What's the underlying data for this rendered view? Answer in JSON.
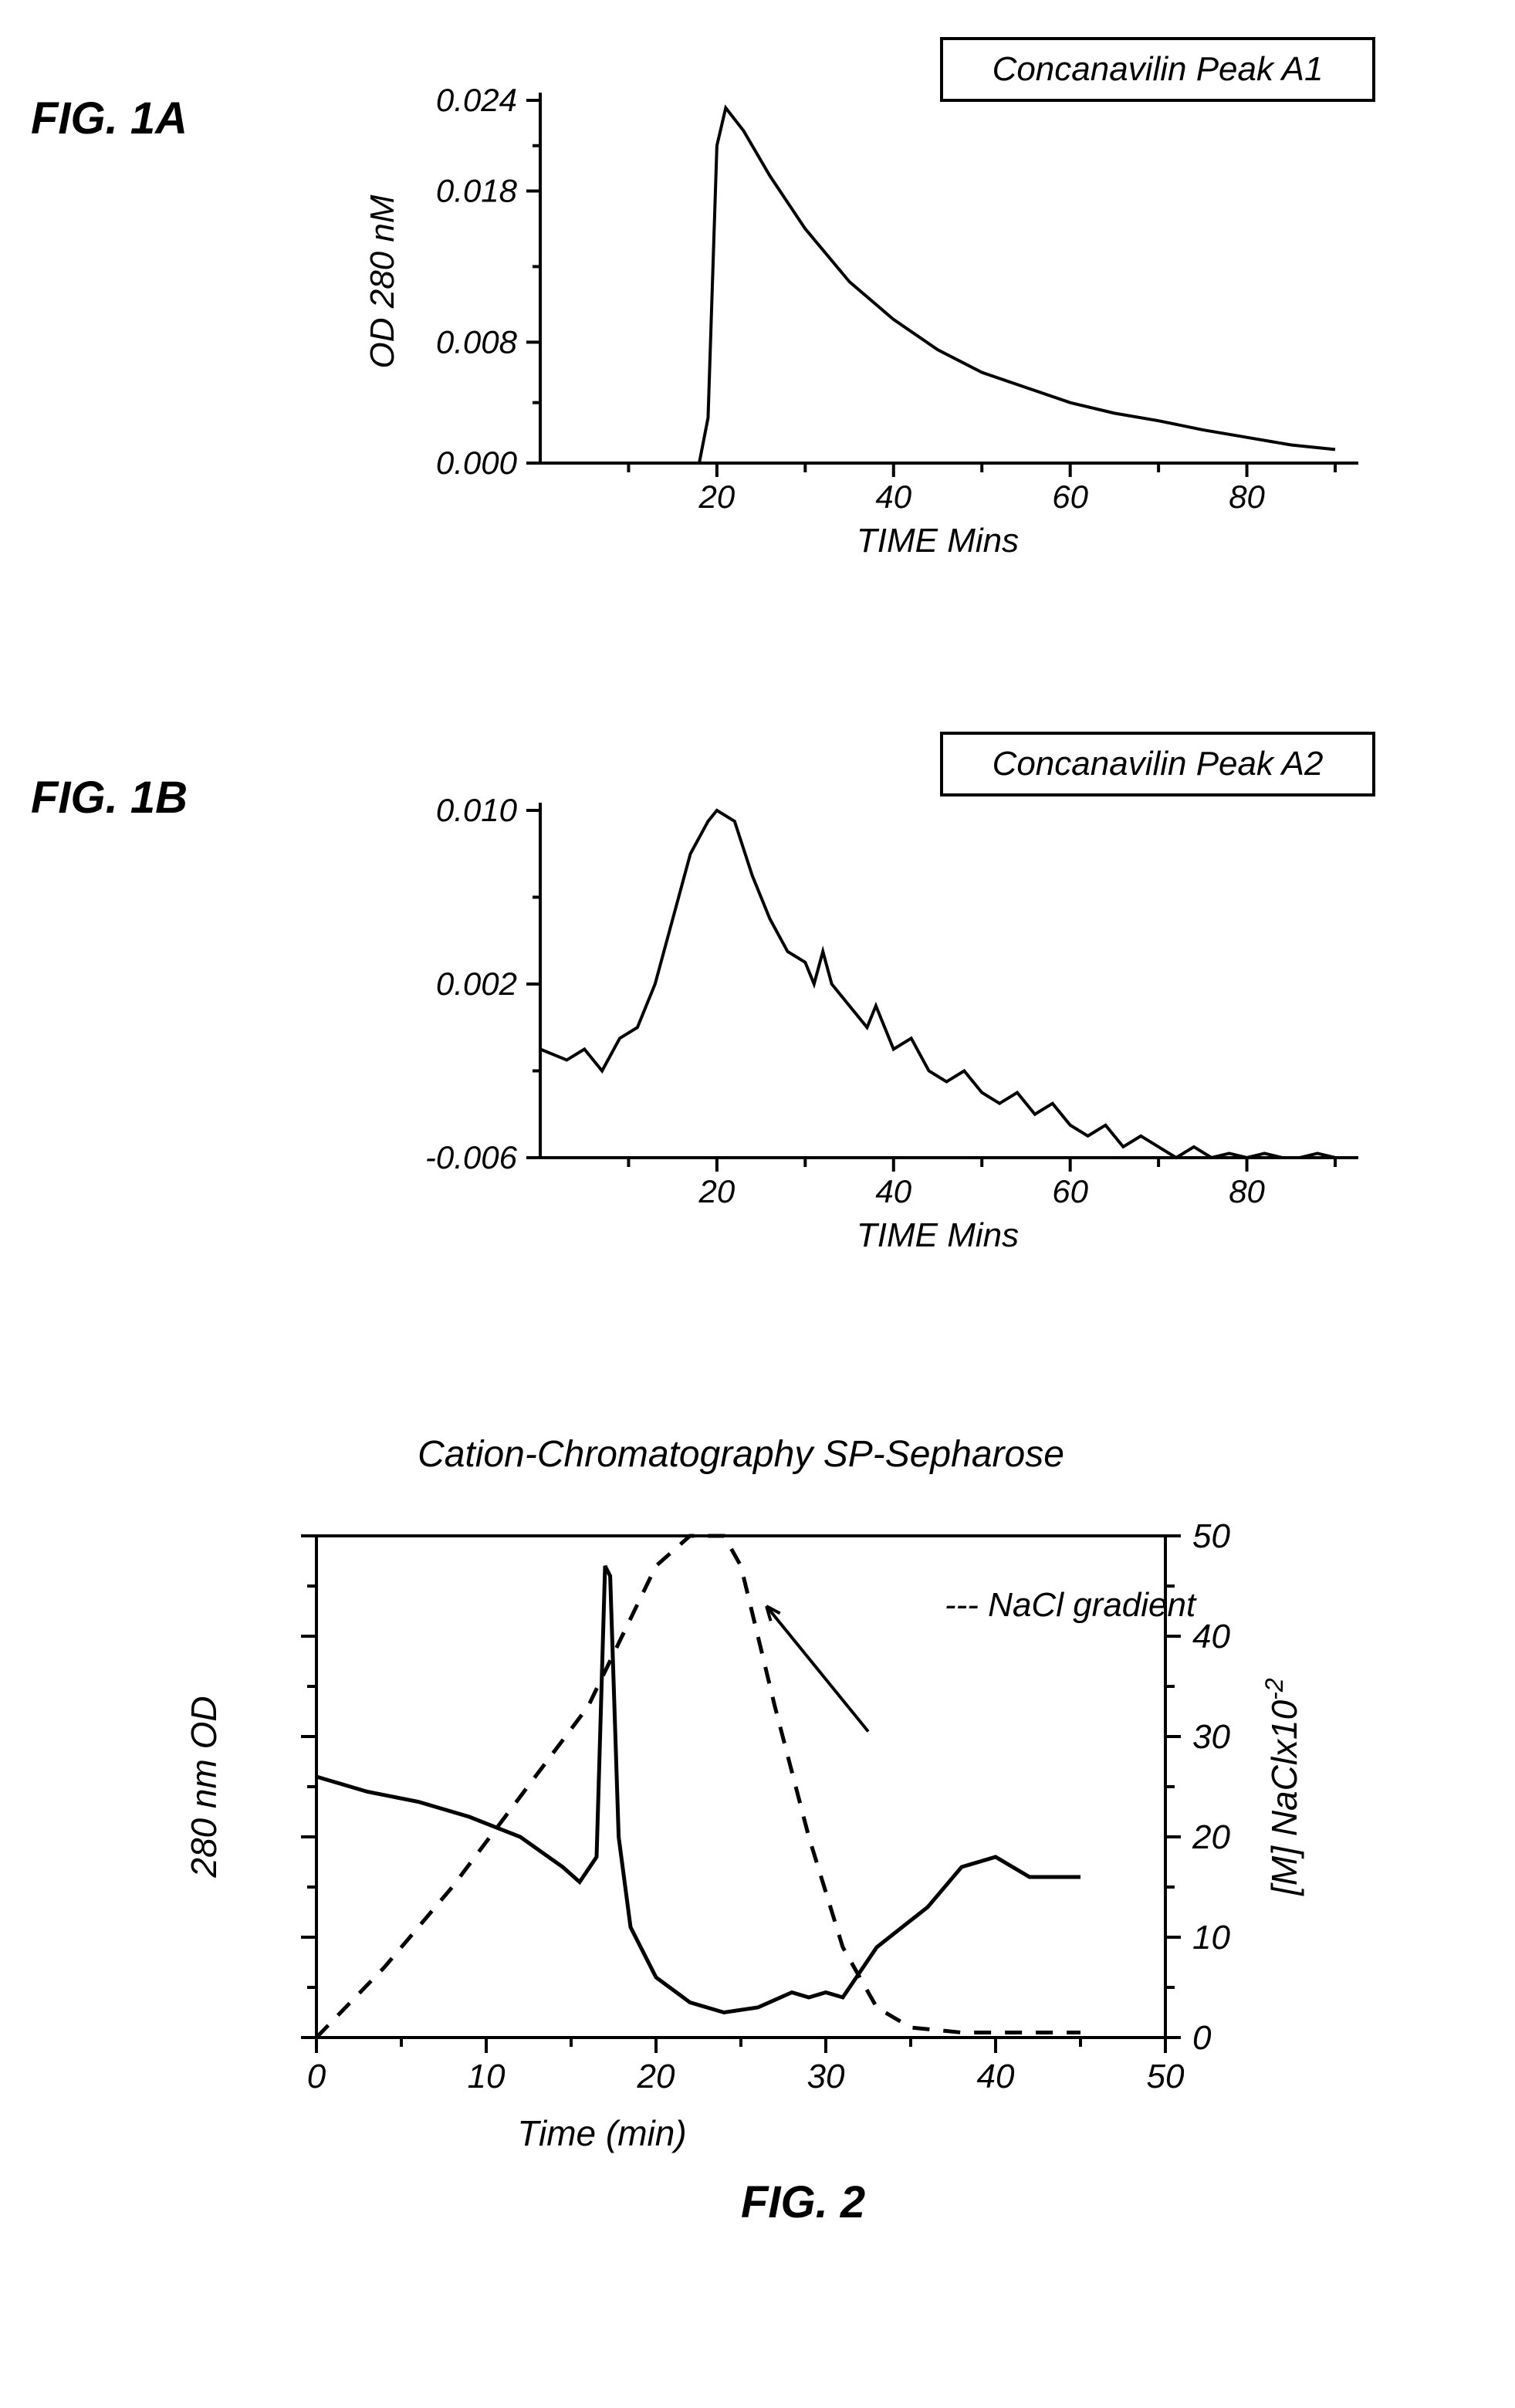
{
  "colors": {
    "line": "#000000",
    "background": "#ffffff"
  },
  "fig1a": {
    "label": "FIG. 1A",
    "type": "line",
    "legend": "Concanavilin Peak A1",
    "xlabel": "TIME Mins",
    "ylabel": "OD 280 nM",
    "xlim": [
      0,
      90
    ],
    "ylim": [
      0.0,
      0.024
    ],
    "xticks": [
      20,
      40,
      60,
      80
    ],
    "yticks_vals": [
      0.0,
      0.008,
      0.018,
      0.024
    ],
    "yticks_labels": [
      "0.000",
      "0.008",
      "0.018",
      "0.024"
    ],
    "stroke_width": 4,
    "font_size_tick": 42,
    "font_size_label": 44,
    "font_size_legend": 44,
    "data": [
      [
        0,
        0.0
      ],
      [
        5,
        0.0
      ],
      [
        10,
        0.0
      ],
      [
        15,
        0.0
      ],
      [
        18,
        0.0
      ],
      [
        19,
        0.003
      ],
      [
        20,
        0.021
      ],
      [
        21,
        0.0235
      ],
      [
        23,
        0.022
      ],
      [
        26,
        0.019
      ],
      [
        30,
        0.0155
      ],
      [
        35,
        0.012
      ],
      [
        40,
        0.0095
      ],
      [
        45,
        0.0075
      ],
      [
        50,
        0.006
      ],
      [
        55,
        0.005
      ],
      [
        60,
        0.004
      ],
      [
        65,
        0.0033
      ],
      [
        70,
        0.0028
      ],
      [
        75,
        0.0022
      ],
      [
        80,
        0.0017
      ],
      [
        85,
        0.0012
      ],
      [
        90,
        0.0009
      ]
    ]
  },
  "fig1b": {
    "label": "FIG. 1B",
    "type": "line",
    "legend": "Concanavilin Peak A2",
    "xlabel": "TIME Mins",
    "xlim": [
      0,
      90
    ],
    "ylim": [
      -0.006,
      0.01
    ],
    "xticks": [
      20,
      40,
      60,
      80
    ],
    "yticks_vals": [
      -0.006,
      0.002,
      0.01
    ],
    "yticks_labels": [
      "-0.006",
      "0.002",
      "0.010"
    ],
    "stroke_width": 4,
    "font_size_tick": 42,
    "font_size_label": 44,
    "font_size_legend": 44,
    "data": [
      [
        0,
        -0.001
      ],
      [
        3,
        -0.0015
      ],
      [
        5,
        -0.001
      ],
      [
        7,
        -0.002
      ],
      [
        9,
        -0.0005
      ],
      [
        11,
        0.0
      ],
      [
        13,
        0.002
      ],
      [
        15,
        0.005
      ],
      [
        17,
        0.008
      ],
      [
        19,
        0.0095
      ],
      [
        20,
        0.01
      ],
      [
        22,
        0.0095
      ],
      [
        24,
        0.007
      ],
      [
        26,
        0.005
      ],
      [
        28,
        0.0035
      ],
      [
        30,
        0.003
      ],
      [
        31,
        0.002
      ],
      [
        32,
        0.0035
      ],
      [
        33,
        0.002
      ],
      [
        35,
        0.001
      ],
      [
        37,
        0.0
      ],
      [
        38,
        0.001
      ],
      [
        40,
        -0.001
      ],
      [
        42,
        -0.0005
      ],
      [
        44,
        -0.002
      ],
      [
        46,
        -0.0025
      ],
      [
        48,
        -0.002
      ],
      [
        50,
        -0.003
      ],
      [
        52,
        -0.0035
      ],
      [
        54,
        -0.003
      ],
      [
        56,
        -0.004
      ],
      [
        58,
        -0.0035
      ],
      [
        60,
        -0.0045
      ],
      [
        62,
        -0.005
      ],
      [
        64,
        -0.0045
      ],
      [
        66,
        -0.0055
      ],
      [
        68,
        -0.005
      ],
      [
        70,
        -0.0055
      ],
      [
        72,
        -0.006
      ],
      [
        74,
        -0.0055
      ],
      [
        76,
        -0.006
      ],
      [
        78,
        -0.0058
      ],
      [
        80,
        -0.006
      ],
      [
        82,
        -0.0058
      ],
      [
        84,
        -0.006
      ],
      [
        86,
        -0.006
      ],
      [
        88,
        -0.0058
      ],
      [
        90,
        -0.006
      ]
    ]
  },
  "fig2": {
    "label": "FIG. 2",
    "type": "line-dual-axis",
    "title": "Cation-Chromatography SP-Sepharose",
    "xlabel": "Time (min)",
    "ylabel_left": "280 nm OD",
    "ylabel_right": "[M] NaClx10⁻²",
    "annotation": "NaCl gradient",
    "annotation_dash": "---",
    "xlim": [
      0,
      50
    ],
    "ylim_right": [
      0,
      50
    ],
    "xticks": [
      0,
      10,
      20,
      30,
      40,
      50
    ],
    "xticks_labels": [
      "0",
      "10",
      "20",
      "30",
      "40",
      "50"
    ],
    "yticks_right": [
      0,
      10,
      20,
      30,
      40,
      50
    ],
    "yticks_right_labels": [
      "0",
      "10",
      "20",
      "30",
      "40",
      "50"
    ],
    "stroke_width_solid": 5,
    "stroke_width_dash": 5,
    "font_size_tick": 44,
    "font_size_label": 46,
    "font_size_title": 48,
    "font_size_annot": 44,
    "solid_data": [
      [
        0,
        26
      ],
      [
        3,
        24.5
      ],
      [
        6,
        23.5
      ],
      [
        9,
        22
      ],
      [
        12,
        20
      ],
      [
        14.5,
        17
      ],
      [
        15.5,
        15.5
      ],
      [
        16.5,
        18
      ],
      [
        17,
        47
      ],
      [
        17.3,
        46
      ],
      [
        17.8,
        20
      ],
      [
        18.5,
        11
      ],
      [
        20,
        6
      ],
      [
        22,
        3.5
      ],
      [
        24,
        2.5
      ],
      [
        26,
        3
      ],
      [
        28,
        4.5
      ],
      [
        29,
        4
      ],
      [
        30,
        4.5
      ],
      [
        31,
        4
      ],
      [
        33,
        9
      ],
      [
        36,
        13
      ],
      [
        38,
        17
      ],
      [
        40,
        18
      ],
      [
        42,
        16
      ],
      [
        44,
        16
      ],
      [
        45,
        16
      ]
    ],
    "dashed_data": [
      [
        0,
        0
      ],
      [
        4,
        7
      ],
      [
        8,
        15
      ],
      [
        12,
        24
      ],
      [
        16,
        33
      ],
      [
        18,
        40
      ],
      [
        20,
        47
      ],
      [
        22,
        50
      ],
      [
        24,
        50
      ],
      [
        25,
        47
      ],
      [
        27,
        33
      ],
      [
        29,
        20
      ],
      [
        31,
        9
      ],
      [
        33,
        3
      ],
      [
        35,
        1
      ],
      [
        38,
        0.5
      ],
      [
        42,
        0.5
      ],
      [
        45,
        0.5
      ]
    ],
    "arrow": {
      "from": [
        32.5,
        30.5
      ],
      "to": [
        26.5,
        43
      ]
    }
  }
}
